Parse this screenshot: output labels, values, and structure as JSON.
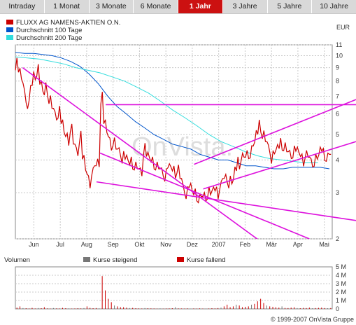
{
  "tabs": [
    {
      "label": "Intraday",
      "active": false
    },
    {
      "label": "1 Monat",
      "active": false
    },
    {
      "label": "3 Monate",
      "active": false
    },
    {
      "label": "6 Monate",
      "active": false
    },
    {
      "label": "1 Jahr",
      "active": true
    },
    {
      "label": "3 Jahre",
      "active": false
    },
    {
      "label": "5 Jahre",
      "active": false
    },
    {
      "label": "10 Jahre",
      "active": false
    }
  ],
  "chart_data": {
    "type": "line",
    "scale": "log",
    "currency": "EUR",
    "y_ticks": [
      2,
      3,
      4,
      5,
      6,
      7,
      8,
      9,
      10,
      11
    ],
    "ylim": [
      2,
      11
    ],
    "x_month_labels": [
      "Jun",
      "Jul",
      "Aug",
      "Sep",
      "Okt",
      "Nov",
      "Dez",
      "2007",
      "Feb",
      "Mär",
      "Apr",
      "Mai"
    ],
    "legend": [
      {
        "name": "FLUXX AG NAMENS-AKTIEN O.N.",
        "color": "#cc0000"
      },
      {
        "name": "Durchschnitt 100 Tage",
        "color": "#0055cc"
      },
      {
        "name": "Durchschnitt 200 Tage",
        "color": "#33dddd"
      }
    ],
    "series": [
      {
        "name": "FLUXX AG NAMENS-AKTIEN O.N.",
        "color": "#cc0000",
        "values": [
          9.3,
          8.8,
          8.0,
          7.0,
          6.5,
          7.7,
          8.4,
          8.8,
          7.9,
          7.2,
          7.5,
          6.8,
          6.3,
          5.9,
          6.1,
          5.6,
          5.0,
          4.8,
          5.3,
          4.6,
          4.3,
          4.9,
          4.1,
          3.6,
          3.3,
          3.6,
          3.8,
          3.9,
          6.9,
          5.6,
          5.0,
          4.6,
          4.7,
          4.4,
          4.3,
          4.1,
          4.1,
          3.9,
          3.9,
          3.8,
          3.7,
          3.6,
          4.4,
          4.2,
          4.0,
          3.9,
          3.8,
          3.7,
          3.6,
          3.5,
          3.8,
          3.7,
          3.6,
          3.7,
          3.4,
          3.1,
          3.0,
          3.2,
          3.0,
          2.95,
          2.85,
          2.9,
          2.9,
          3.0,
          3.0,
          3.1,
          3.0,
          3.2,
          3.4,
          3.4,
          3.3,
          3.3,
          3.7,
          3.9,
          4.1,
          4.1,
          4.2,
          4.3,
          4.6,
          5.1,
          5.4,
          5.0,
          4.7,
          4.4,
          4.1,
          4.3,
          4.5,
          4.6,
          4.5,
          4.3,
          4.2,
          4.3,
          4.4,
          4.2,
          4.0,
          4.2,
          4.1,
          3.9,
          4.0,
          4.1,
          4.4,
          4.2,
          4.1,
          4.2
        ]
      },
      {
        "name": "Durchschnitt 100 Tage",
        "color": "#0055cc",
        "values": [
          10.3,
          10.2,
          10.2,
          10.1,
          10.0,
          9.8,
          9.5,
          9.1,
          8.5,
          7.8,
          7.0,
          6.4,
          6.0,
          5.6,
          5.3,
          5.0,
          4.8,
          4.6,
          4.5,
          4.4,
          4.2,
          4.1,
          4.0,
          4.0,
          3.9,
          3.8,
          3.8,
          3.75,
          3.7,
          3.7,
          3.75,
          3.75,
          3.75,
          3.75,
          3.7
        ]
      },
      {
        "name": "Durchschnitt 200 Tage",
        "color": "#33dddd",
        "values": [
          9.9,
          9.8,
          9.7,
          9.5,
          9.3,
          9.0,
          8.8,
          8.6,
          8.3,
          8.0,
          7.6,
          7.2,
          6.7,
          6.2,
          5.8,
          5.4,
          5.0,
          4.7,
          4.5,
          4.3,
          4.15,
          4.05,
          4.0,
          3.95,
          3.9,
          3.9
        ]
      }
    ],
    "trendlines": [
      {
        "color": "#dd11dd",
        "from": [
          2.3,
          9.0
        ],
        "to": [
          73.3,
          1.9
        ]
      },
      {
        "color": "#dd11dd",
        "from": [
          25.6,
          3.3
        ],
        "to": [
          100.0,
          2.35
        ]
      },
      {
        "color": "#dd11dd",
        "from": [
          28.5,
          6.5
        ],
        "to": [
          100.0,
          6.5
        ]
      },
      {
        "color": "#dd11dd",
        "from": [
          59.3,
          3.1
        ],
        "to": [
          100.0,
          4.7
        ]
      },
      {
        "color": "#dd11dd",
        "from": [
          56.4,
          3.85
        ],
        "to": [
          100.0,
          6.8
        ]
      },
      {
        "color": "#dd11dd",
        "from": [
          26.7,
          4.25
        ],
        "to": [
          86.3,
          2.0
        ]
      }
    ],
    "watermark": "OnVista.",
    "volume": {
      "title": "Volumen",
      "legend": [
        {
          "name": "Kurse steigend",
          "color": "#777777"
        },
        {
          "name": "Kurse fallend",
          "color": "#cc0000"
        }
      ],
      "y_ticks": [
        "0",
        "1 M",
        "2 M",
        "3 M",
        "4 M",
        "5 M"
      ],
      "ylim": [
        0,
        5
      ],
      "unit": "M",
      "values": [
        0.15,
        0.3,
        0.1,
        0.08,
        0.05,
        0.12,
        0.05,
        0.1,
        0.08,
        0.2,
        0.06,
        0.04,
        0.1,
        0.06,
        0.05,
        0.12,
        0.08,
        0.06,
        0.04,
        0.05,
        0.08,
        0.06,
        0.1,
        0.3,
        0.12,
        0.08,
        0.1,
        0.06,
        3.9,
        2.2,
        1.2,
        0.8,
        0.4,
        0.3,
        0.2,
        0.2,
        0.15,
        0.1,
        0.12,
        0.08,
        0.06,
        0.05,
        0.1,
        0.08,
        0.06,
        0.05,
        0.04,
        0.06,
        0.03,
        0.05,
        0.06,
        0.08,
        0.2,
        0.06,
        0.05,
        0.04,
        0.06,
        0.03,
        0.05,
        0.04,
        0.06,
        0.04,
        0.04,
        0.05,
        0.08,
        0.06,
        0.1,
        0.15,
        0.3,
        0.5,
        0.2,
        0.3,
        0.5,
        0.4,
        0.2,
        0.25,
        0.3,
        0.5,
        0.6,
        0.9,
        1.2,
        0.7,
        0.4,
        0.3,
        0.25,
        0.2,
        0.15,
        0.3,
        0.12,
        0.1,
        0.15,
        0.2,
        0.1,
        0.08,
        0.12,
        0.1,
        0.15,
        0.08,
        0.1,
        0.12,
        0.15,
        0.1,
        0.08,
        0.1
      ]
    }
  },
  "copyright": "© 1999-2007 OnVista Gruppe"
}
